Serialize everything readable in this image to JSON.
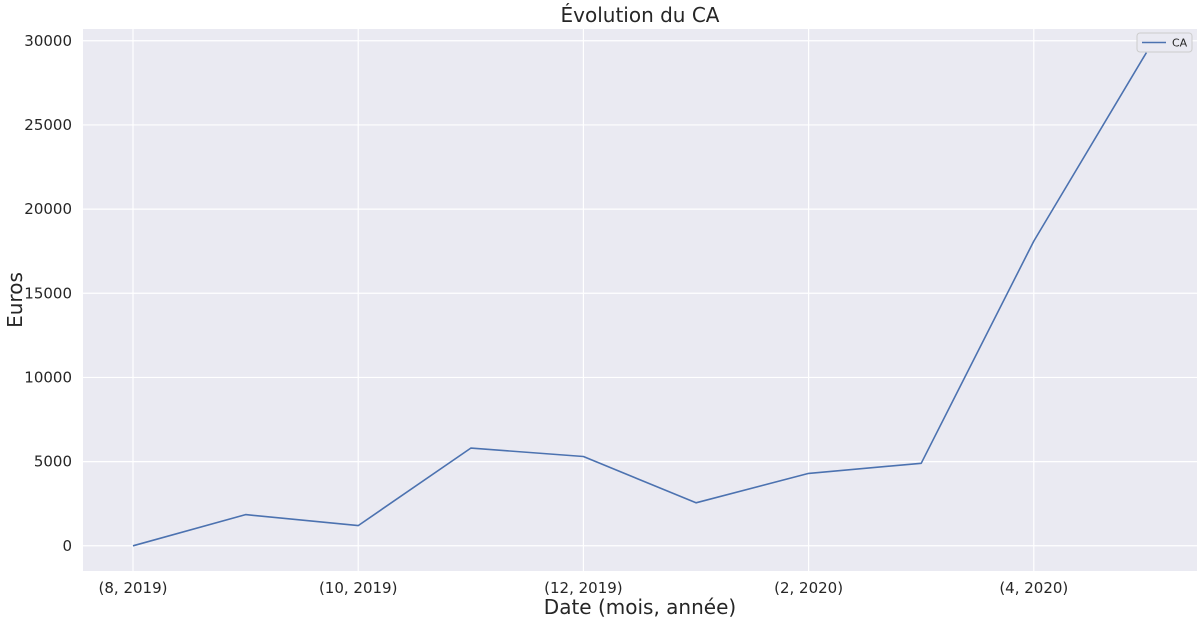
{
  "chart_data": {
    "type": "line",
    "title": "Évolution du CA",
    "xlabel": "Date (mois, année)",
    "ylabel": "Euros",
    "x": [
      "(8, 2019)",
      "(9, 2019)",
      "(10, 2019)",
      "(11, 2019)",
      "(12, 2019)",
      "(1, 2020)",
      "(2, 2020)",
      "(3, 2020)",
      "(4, 2020)",
      "(5, 2020)"
    ],
    "xticks_shown": [
      "(8, 2019)",
      "(10, 2019)",
      "(12, 2019)",
      "(2, 2020)",
      "(4, 2020)"
    ],
    "yticks": [
      0,
      5000,
      10000,
      15000,
      20000,
      25000,
      30000
    ],
    "ylim": [
      -1500,
      30700
    ],
    "series": [
      {
        "name": "CA",
        "color": "#4c72b0",
        "values": [
          0,
          1850,
          1200,
          5800,
          5300,
          2550,
          4300,
          4900,
          18100,
          29300
        ]
      }
    ],
    "legend": "top-right",
    "grid": true,
    "background": "#eaeaf2"
  }
}
